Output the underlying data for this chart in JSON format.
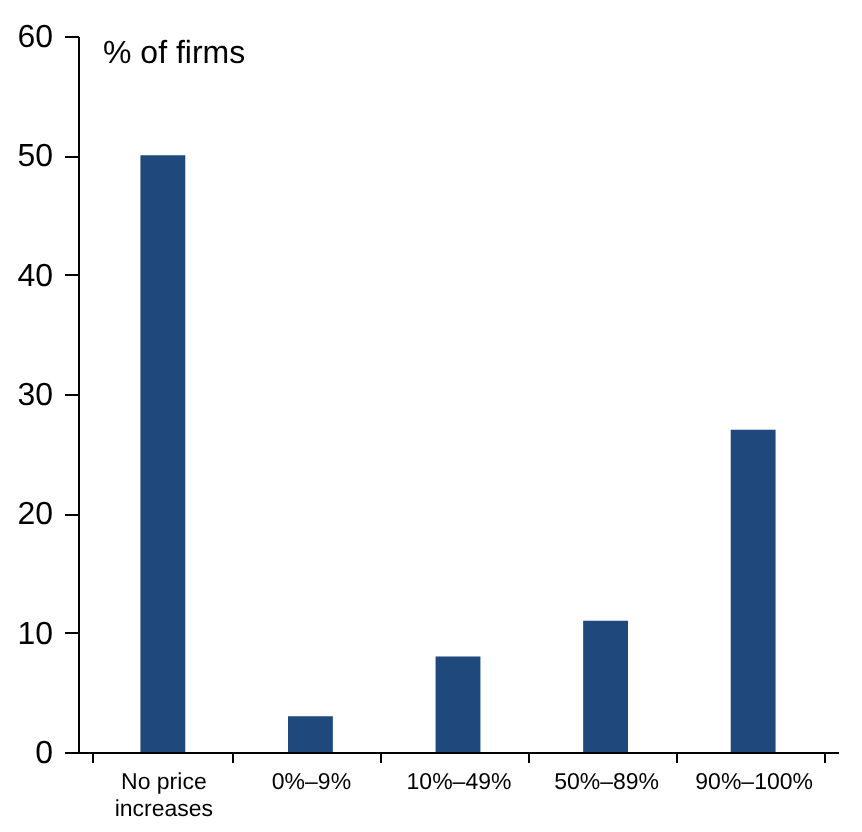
{
  "chart_data": {
    "type": "bar",
    "ylabel": "% of firms",
    "categories": [
      "No price increases",
      "0%–9%",
      "10%–49%",
      "50%–89%",
      "90%–100%"
    ],
    "values": [
      50,
      3,
      8,
      11,
      27
    ],
    "color": "#1f497d",
    "ylim": [
      0,
      60
    ],
    "yticks": [
      0,
      10,
      20,
      30,
      40,
      50,
      60
    ],
    "grid": false
  }
}
